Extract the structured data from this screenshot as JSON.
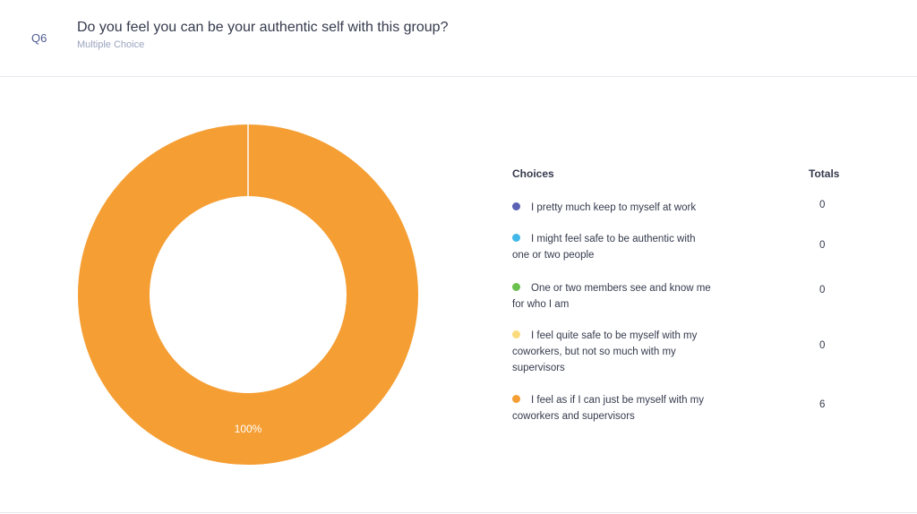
{
  "question": {
    "number": "Q6",
    "title": "Do you feel you can be your authentic self with this group?",
    "type": "Multiple Choice"
  },
  "legend": {
    "choices_header": "Choices",
    "totals_header": "Totals"
  },
  "chart_data": {
    "type": "pie",
    "variant": "donut",
    "categories": [
      "I pretty much keep to myself at work",
      "I might feel safe to be authentic with one or two people",
      "One or two members see and know me for who I am",
      "I feel quite safe to be myself with my coworkers, but not so much with my supervisors",
      "I feel as if I can just be myself with my coworkers and supervisors"
    ],
    "values": [
      0,
      0,
      0,
      0,
      6
    ],
    "colors": [
      "#5b62b5",
      "#41b8e8",
      "#6bc14f",
      "#fbdc7c",
      "#f59e33"
    ],
    "data_labels": [
      "",
      "",
      "",
      "",
      "100%"
    ],
    "legend_position": "right"
  }
}
